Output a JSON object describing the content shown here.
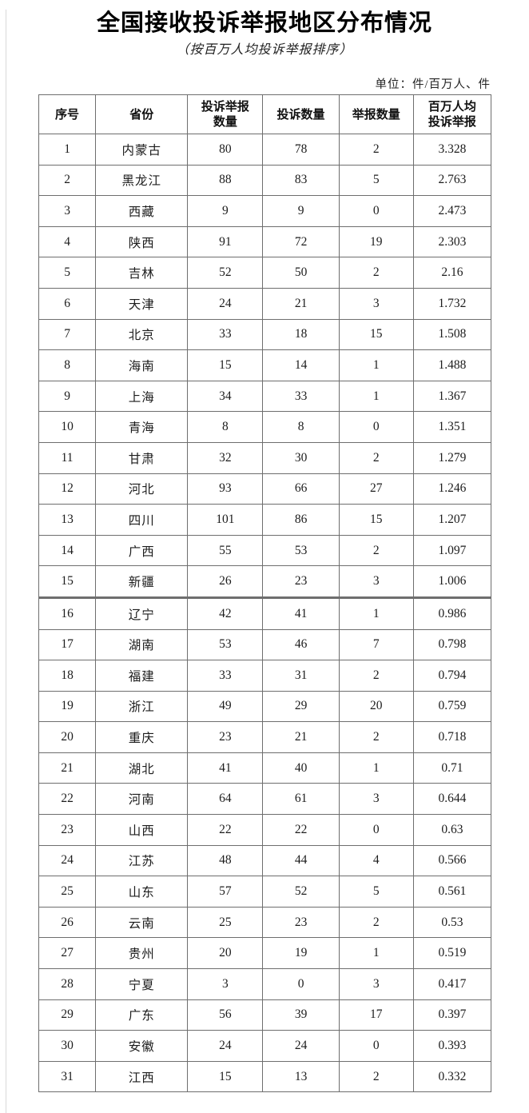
{
  "document": {
    "title": "全国接收投诉举报地区分布情况",
    "subtitle": "（按百万人均投诉举报排序）",
    "unit_note": "单位：件/百万人、件"
  },
  "table": {
    "columns": [
      "序号",
      "省份",
      "投诉举报\n数量",
      "投诉数量",
      "举报数量",
      "百万人均\n投诉举报"
    ],
    "rows": [
      {
        "no": "1",
        "province": "内蒙古",
        "total": "80",
        "complaints": "78",
        "reports": "2",
        "per_million": "3.328"
      },
      {
        "no": "2",
        "province": "黑龙江",
        "total": "88",
        "complaints": "83",
        "reports": "5",
        "per_million": "2.763"
      },
      {
        "no": "3",
        "province": "西藏",
        "total": "9",
        "complaints": "9",
        "reports": "0",
        "per_million": "2.473"
      },
      {
        "no": "4",
        "province": "陕西",
        "total": "91",
        "complaints": "72",
        "reports": "19",
        "per_million": "2.303"
      },
      {
        "no": "5",
        "province": "吉林",
        "total": "52",
        "complaints": "50",
        "reports": "2",
        "per_million": "2.16"
      },
      {
        "no": "6",
        "province": "天津",
        "total": "24",
        "complaints": "21",
        "reports": "3",
        "per_million": "1.732"
      },
      {
        "no": "7",
        "province": "北京",
        "total": "33",
        "complaints": "18",
        "reports": "15",
        "per_million": "1.508"
      },
      {
        "no": "8",
        "province": "海南",
        "total": "15",
        "complaints": "14",
        "reports": "1",
        "per_million": "1.488"
      },
      {
        "no": "9",
        "province": "上海",
        "total": "34",
        "complaints": "33",
        "reports": "1",
        "per_million": "1.367"
      },
      {
        "no": "10",
        "province": "青海",
        "total": "8",
        "complaints": "8",
        "reports": "0",
        "per_million": "1.351"
      },
      {
        "no": "11",
        "province": "甘肃",
        "total": "32",
        "complaints": "30",
        "reports": "2",
        "per_million": "1.279"
      },
      {
        "no": "12",
        "province": "河北",
        "total": "93",
        "complaints": "66",
        "reports": "27",
        "per_million": "1.246"
      },
      {
        "no": "13",
        "province": "四川",
        "total": "101",
        "complaints": "86",
        "reports": "15",
        "per_million": "1.207"
      },
      {
        "no": "14",
        "province": "广西",
        "total": "55",
        "complaints": "53",
        "reports": "2",
        "per_million": "1.097"
      },
      {
        "no": "15",
        "province": "新疆",
        "total": "26",
        "complaints": "23",
        "reports": "3",
        "per_million": "1.006"
      },
      {
        "no": "16",
        "province": "辽宁",
        "total": "42",
        "complaints": "41",
        "reports": "1",
        "per_million": "0.986"
      },
      {
        "no": "17",
        "province": "湖南",
        "total": "53",
        "complaints": "46",
        "reports": "7",
        "per_million": "0.798"
      },
      {
        "no": "18",
        "province": "福建",
        "total": "33",
        "complaints": "31",
        "reports": "2",
        "per_million": "0.794"
      },
      {
        "no": "19",
        "province": "浙江",
        "total": "49",
        "complaints": "29",
        "reports": "20",
        "per_million": "0.759"
      },
      {
        "no": "20",
        "province": "重庆",
        "total": "23",
        "complaints": "21",
        "reports": "2",
        "per_million": "0.718"
      },
      {
        "no": "21",
        "province": "湖北",
        "total": "41",
        "complaints": "40",
        "reports": "1",
        "per_million": "0.71"
      },
      {
        "no": "22",
        "province": "河南",
        "total": "64",
        "complaints": "61",
        "reports": "3",
        "per_million": "0.644"
      },
      {
        "no": "23",
        "province": "山西",
        "total": "22",
        "complaints": "22",
        "reports": "0",
        "per_million": "0.63"
      },
      {
        "no": "24",
        "province": "江苏",
        "total": "48",
        "complaints": "44",
        "reports": "4",
        "per_million": "0.566"
      },
      {
        "no": "25",
        "province": "山东",
        "total": "57",
        "complaints": "52",
        "reports": "5",
        "per_million": "0.561"
      },
      {
        "no": "26",
        "province": "云南",
        "total": "25",
        "complaints": "23",
        "reports": "2",
        "per_million": "0.53"
      },
      {
        "no": "27",
        "province": "贵州",
        "total": "20",
        "complaints": "19",
        "reports": "1",
        "per_million": "0.519"
      },
      {
        "no": "28",
        "province": "宁夏",
        "total": "3",
        "complaints": "0",
        "reports": "3",
        "per_million": "0.417"
      },
      {
        "no": "29",
        "province": "广东",
        "total": "56",
        "complaints": "39",
        "reports": "17",
        "per_million": "0.397"
      },
      {
        "no": "30",
        "province": "安徽",
        "total": "24",
        "complaints": "24",
        "reports": "0",
        "per_million": "0.393"
      },
      {
        "no": "31",
        "province": "江西",
        "total": "15",
        "complaints": "13",
        "reports": "2",
        "per_million": "0.332"
      }
    ]
  }
}
